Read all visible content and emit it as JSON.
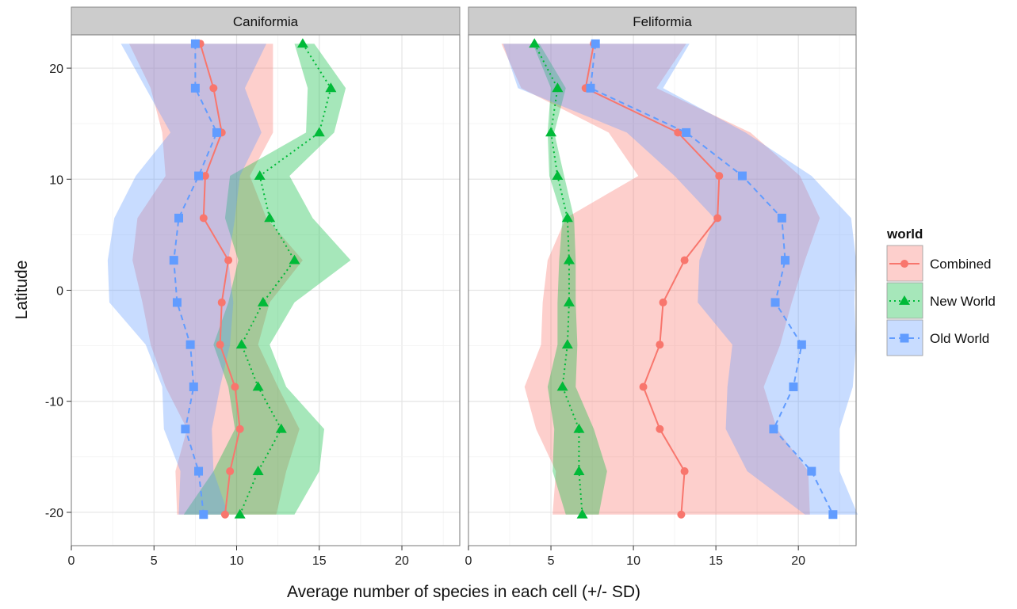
{
  "chart_data": {
    "type": "line",
    "xlabel": "Average number of species in each cell (+/- SD)",
    "ylabel": "Latitude",
    "xlim": [
      0,
      23.5
    ],
    "ylim": [
      -23,
      23
    ],
    "x_ticks": [
      0,
      5,
      10,
      15,
      20
    ],
    "y_ticks": [
      -20,
      -10,
      0,
      10,
      20
    ],
    "grid": true,
    "legend": {
      "title": "world",
      "position": "right",
      "entries": [
        {
          "label": "Combined",
          "color": "#F8766D",
          "shape": "circle",
          "dash": "solid"
        },
        {
          "label": "New World",
          "color": "#00BA38",
          "shape": "triangle",
          "dash": "dotted"
        },
        {
          "label": "Old World",
          "color": "#619CFF",
          "shape": "square",
          "dash": "dashed"
        }
      ]
    },
    "latitudes": [
      22.2,
      18.2,
      14.2,
      10.3,
      6.5,
      2.7,
      -1.1,
      -4.9,
      -8.7,
      -12.5,
      -16.3,
      -20.2
    ],
    "panels": [
      {
        "title": "Caniformia",
        "series": [
          {
            "name": "Combined",
            "mean": [
              7.8,
              8.6,
              9.1,
              8.1,
              8.0,
              9.5,
              9.1,
              9.0,
              9.9,
              10.2,
              9.6,
              9.3
            ],
            "lower": [
              3.5,
              4.8,
              5.5,
              5.7,
              4.0,
              3.7,
              4.3,
              4.8,
              5.7,
              7.0,
              6.3,
              6.4
            ],
            "upper": [
              12.2,
              12.2,
              12.2,
              10.8,
              11.8,
              14.0,
              12.0,
              11.3,
              12.5,
              13.8,
              13.0,
              12.4
            ]
          },
          {
            "name": "New World",
            "mean": [
              14.0,
              15.7,
              15.0,
              11.4,
              12.0,
              13.5,
              11.6,
              10.3,
              11.3,
              12.7,
              11.3,
              10.2
            ],
            "lower": [
              13.5,
              14.3,
              14.2,
              9.6,
              9.3,
              10.1,
              9.5,
              8.6,
              9.5,
              9.9,
              8.6,
              6.8
            ],
            "upper": [
              14.7,
              16.6,
              15.9,
              13.2,
              14.6,
              16.9,
              13.5,
              12.0,
              13.0,
              15.3,
              15.0,
              13.5
            ]
          },
          {
            "name": "Old World",
            "mean": [
              7.5,
              7.5,
              8.8,
              7.7,
              6.5,
              6.2,
              6.4,
              7.2,
              7.4,
              6.9,
              7.7,
              8.0
            ],
            "lower": [
              3.0,
              4.5,
              6.0,
              3.9,
              2.6,
              2.2,
              2.3,
              4.5,
              5.5,
              5.6,
              6.6,
              6.5
            ],
            "upper": [
              11.8,
              10.5,
              11.5,
              10.2,
              9.9,
              9.5,
              9.8,
              9.6,
              9.0,
              8.5,
              8.6,
              9.5
            ]
          }
        ]
      },
      {
        "title": "Feliformia",
        "series": [
          {
            "name": "Combined",
            "mean": [
              7.6,
              7.1,
              12.7,
              15.2,
              15.1,
              13.1,
              11.8,
              11.6,
              10.6,
              11.6,
              13.1,
              12.9
            ],
            "lower": [
              2.0,
              3.2,
              8.5,
              10.3,
              5.9,
              4.8,
              4.5,
              4.4,
              3.4,
              4.1,
              5.3,
              5.1
            ],
            "upper": [
              13.2,
              11.4,
              17.1,
              20.1,
              21.3,
              20.4,
              19.6,
              18.9,
              17.9,
              18.7,
              20.6,
              20.7
            ]
          },
          {
            "name": "New World",
            "mean": [
              4.0,
              5.4,
              5.0,
              5.4,
              6.0,
              6.1,
              6.1,
              6.0,
              5.7,
              6.7,
              6.7,
              6.9
            ],
            "lower": [
              3.9,
              5.0,
              4.8,
              4.9,
              5.7,
              5.5,
              5.4,
              5.4,
              4.8,
              5.2,
              5.1,
              5.9
            ],
            "upper": [
              4.3,
              5.9,
              5.2,
              5.8,
              6.4,
              6.5,
              6.5,
              6.6,
              6.5,
              7.6,
              8.4,
              7.9
            ]
          },
          {
            "name": "Old World",
            "mean": [
              7.7,
              7.4,
              13.2,
              16.6,
              19.0,
              19.2,
              18.6,
              20.2,
              19.7,
              18.5,
              20.8,
              22.1
            ],
            "lower": [
              2.1,
              3.0,
              9.6,
              12.5,
              14.9,
              14.0,
              13.9,
              16.0,
              15.7,
              15.6,
              16.9,
              20.4
            ],
            "upper": [
              13.4,
              11.8,
              16.8,
              20.8,
              23.2,
              23.5,
              23.4,
              23.5,
              23.3,
              22.5,
              22.5,
              23.6
            ]
          }
        ]
      }
    ]
  }
}
